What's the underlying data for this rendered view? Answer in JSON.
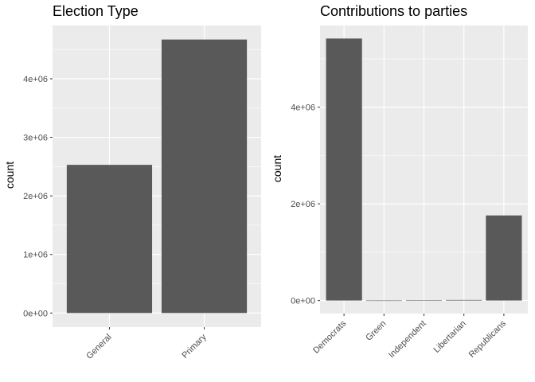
{
  "chart_data": [
    {
      "type": "bar",
      "title": "Election Type",
      "xlabel": "",
      "ylabel": "count",
      "categories": [
        "General",
        "Primary"
      ],
      "values": [
        2530000,
        4670000
      ],
      "ylim": [
        -240000,
        4910000
      ],
      "yticks": [
        0,
        1000000,
        2000000,
        3000000,
        4000000
      ],
      "ytick_labels": [
        "0e+00",
        "1e+06",
        "2e+06",
        "3e+06",
        "4e+06"
      ],
      "grid": true,
      "bar_color": "#595959",
      "panel_color": "#ebebeb"
    },
    {
      "type": "bar",
      "title": "Contributions to parties",
      "xlabel": "",
      "ylabel": "count",
      "categories": [
        "Democrats",
        "Green",
        "Independent",
        "Libertarian",
        "Republicans"
      ],
      "values": [
        5420000,
        1500,
        3000,
        12000,
        1760000
      ],
      "ylim": [
        -270000,
        5690000
      ],
      "yticks": [
        0,
        2000000,
        4000000
      ],
      "ytick_labels": [
        "0e+00",
        "2e+06",
        "4e+06"
      ],
      "grid": true,
      "bar_color": "#595959",
      "panel_color": "#ebebeb"
    }
  ]
}
